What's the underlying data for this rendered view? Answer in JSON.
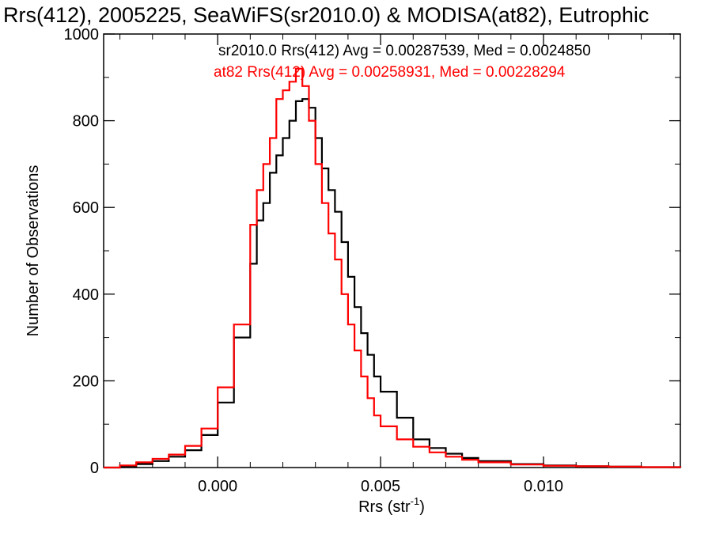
{
  "chart_data": {
    "type": "line",
    "title": "Rrs(412), 2005225, SeaWiFS(sr2010.0) & MODISA(at82), Eutrophic",
    "xlabel": "Rrs (str",
    "xlabel_sup": "-1",
    "xlabel_close": ")",
    "ylabel": "Number of Observations",
    "xlim": [
      -0.0035,
      0.0142
    ],
    "ylim": [
      0,
      1000
    ],
    "xticks": [
      0.0,
      0.005,
      0.01
    ],
    "xtick_labels": [
      "0.000",
      "0.005",
      "0.010"
    ],
    "xminor_step": 0.001,
    "yticks": [
      0,
      200,
      400,
      600,
      800,
      1000
    ],
    "ytick_labels": [
      "0",
      "200",
      "400",
      "600",
      "800",
      "1000"
    ],
    "yminor_step": 100,
    "grid": false,
    "legend_position": "top-right",
    "series": [
      {
        "name": "sr2010.0 Rrs(412) Avg = 0.00287539, Med = 0.0024850",
        "color": "#000000",
        "step": true,
        "x": [
          -0.0035,
          -0.003,
          -0.0025,
          -0.002,
          -0.0015,
          -0.001,
          -0.0005,
          0.0,
          0.0005,
          0.001,
          0.0012,
          0.0014,
          0.0016,
          0.0018,
          0.002,
          0.0022,
          0.0024,
          0.0026,
          0.0028,
          0.003,
          0.0032,
          0.0034,
          0.0036,
          0.0038,
          0.004,
          0.0042,
          0.0044,
          0.0046,
          0.0048,
          0.005,
          0.0055,
          0.006,
          0.0065,
          0.007,
          0.0075,
          0.008,
          0.009,
          0.01,
          0.011,
          0.012,
          0.013,
          0.0142
        ],
        "y": [
          0,
          3,
          8,
          15,
          25,
          40,
          75,
          150,
          300,
          470,
          570,
          610,
          680,
          720,
          760,
          800,
          845,
          850,
          830,
          760,
          690,
          640,
          590,
          520,
          440,
          370,
          310,
          260,
          210,
          175,
          115,
          65,
          45,
          32,
          22,
          15,
          8,
          5,
          3,
          2,
          1,
          0
        ]
      },
      {
        "name": "at82 Rrs(412) Avg = 0.00258931, Med = 0.00228294",
        "color": "#ff0000",
        "step": true,
        "x": [
          -0.0035,
          -0.003,
          -0.0025,
          -0.002,
          -0.0015,
          -0.001,
          -0.0005,
          0.0,
          0.0005,
          0.001,
          0.0012,
          0.0014,
          0.0016,
          0.0018,
          0.002,
          0.0022,
          0.0024,
          0.0026,
          0.0028,
          0.003,
          0.0032,
          0.0034,
          0.0036,
          0.0038,
          0.004,
          0.0042,
          0.0044,
          0.0046,
          0.0048,
          0.005,
          0.0055,
          0.006,
          0.0065,
          0.007,
          0.0075,
          0.008,
          0.009,
          0.01,
          0.011,
          0.012,
          0.013,
          0.0142
        ],
        "y": [
          0,
          5,
          12,
          20,
          30,
          50,
          90,
          185,
          330,
          560,
          640,
          700,
          760,
          850,
          870,
          890,
          920,
          880,
          800,
          700,
          610,
          540,
          480,
          400,
          330,
          270,
          210,
          160,
          120,
          95,
          65,
          48,
          35,
          25,
          18,
          12,
          7,
          4,
          3,
          2,
          1,
          0
        ]
      }
    ]
  }
}
